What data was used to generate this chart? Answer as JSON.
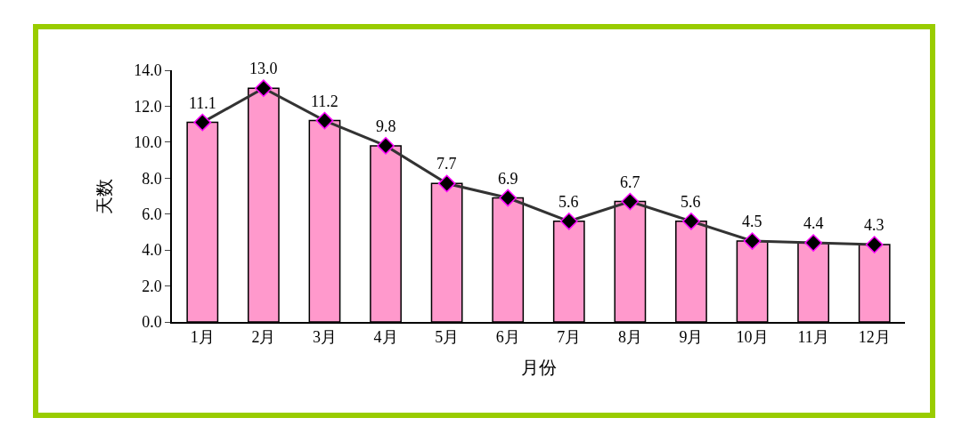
{
  "chart_data": {
    "type": "bar",
    "xlabel": "月份",
    "ylabel": "天数",
    "categories": [
      "1月",
      "2月",
      "3月",
      "4月",
      "5月",
      "6月",
      "7月",
      "8月",
      "9月",
      "10月",
      "11月",
      "12月"
    ],
    "series": [
      {
        "color": "#ff99cc",
        "values": [
          11.1,
          13.0,
          11.2,
          9.8,
          7.7,
          6.9,
          5.6,
          6.7,
          5.6,
          4.5,
          4.4,
          4.3
        ]
      },
      {
        "type": "line",
        "color": "#333333",
        "marker": "diamond",
        "values": [
          11.1,
          13.0,
          11.2,
          9.8,
          7.7,
          6.9,
          5.6,
          6.7,
          5.6,
          4.5,
          4.4,
          4.3
        ]
      }
    ],
    "value_labels": [
      "11.1",
      "13.0",
      "11.2",
      "9.8",
      "7.7",
      "6.9",
      "5.6",
      "6.7",
      "5.6",
      "4.5",
      "4.4",
      "4.3"
    ],
    "ylim": [
      0,
      14
    ],
    "yticks": [
      {
        "value": 0,
        "label": "0.0"
      },
      {
        "value": 2,
        "label": "2.0"
      },
      {
        "value": 4,
        "label": "4.0"
      },
      {
        "value": 6,
        "label": "6.0"
      },
      {
        "value": 8,
        "label": "8.0"
      },
      {
        "value": 10,
        "label": "10.0"
      },
      {
        "value": 12,
        "label": "12.0"
      },
      {
        "value": 14,
        "label": "14.0"
      }
    ],
    "grid": false
  }
}
